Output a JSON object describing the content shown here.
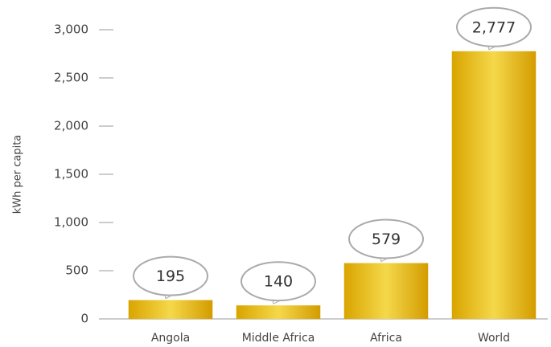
{
  "chart_data": {
    "type": "bar",
    "y_label": "kWh per capita",
    "categories": [
      "Angola",
      "Middle Africa",
      "Africa",
      "World"
    ],
    "values": [
      195,
      140,
      579,
      2777
    ],
    "value_labels": [
      "195",
      "140",
      "579",
      "2,777"
    ],
    "color": "#e8b820",
    "ylim": [
      0,
      3000
    ],
    "yticks": [
      0,
      500,
      {
        "value": 1000,
        "label": "1,000"
      },
      {
        "value": 1500,
        "label": "1,500"
      },
      {
        "value": 2000,
        "label": "2,000"
      },
      {
        "value": 2500,
        "label": "2,500"
      },
      {
        "value": 3000,
        "label": "3,000"
      }
    ]
  }
}
